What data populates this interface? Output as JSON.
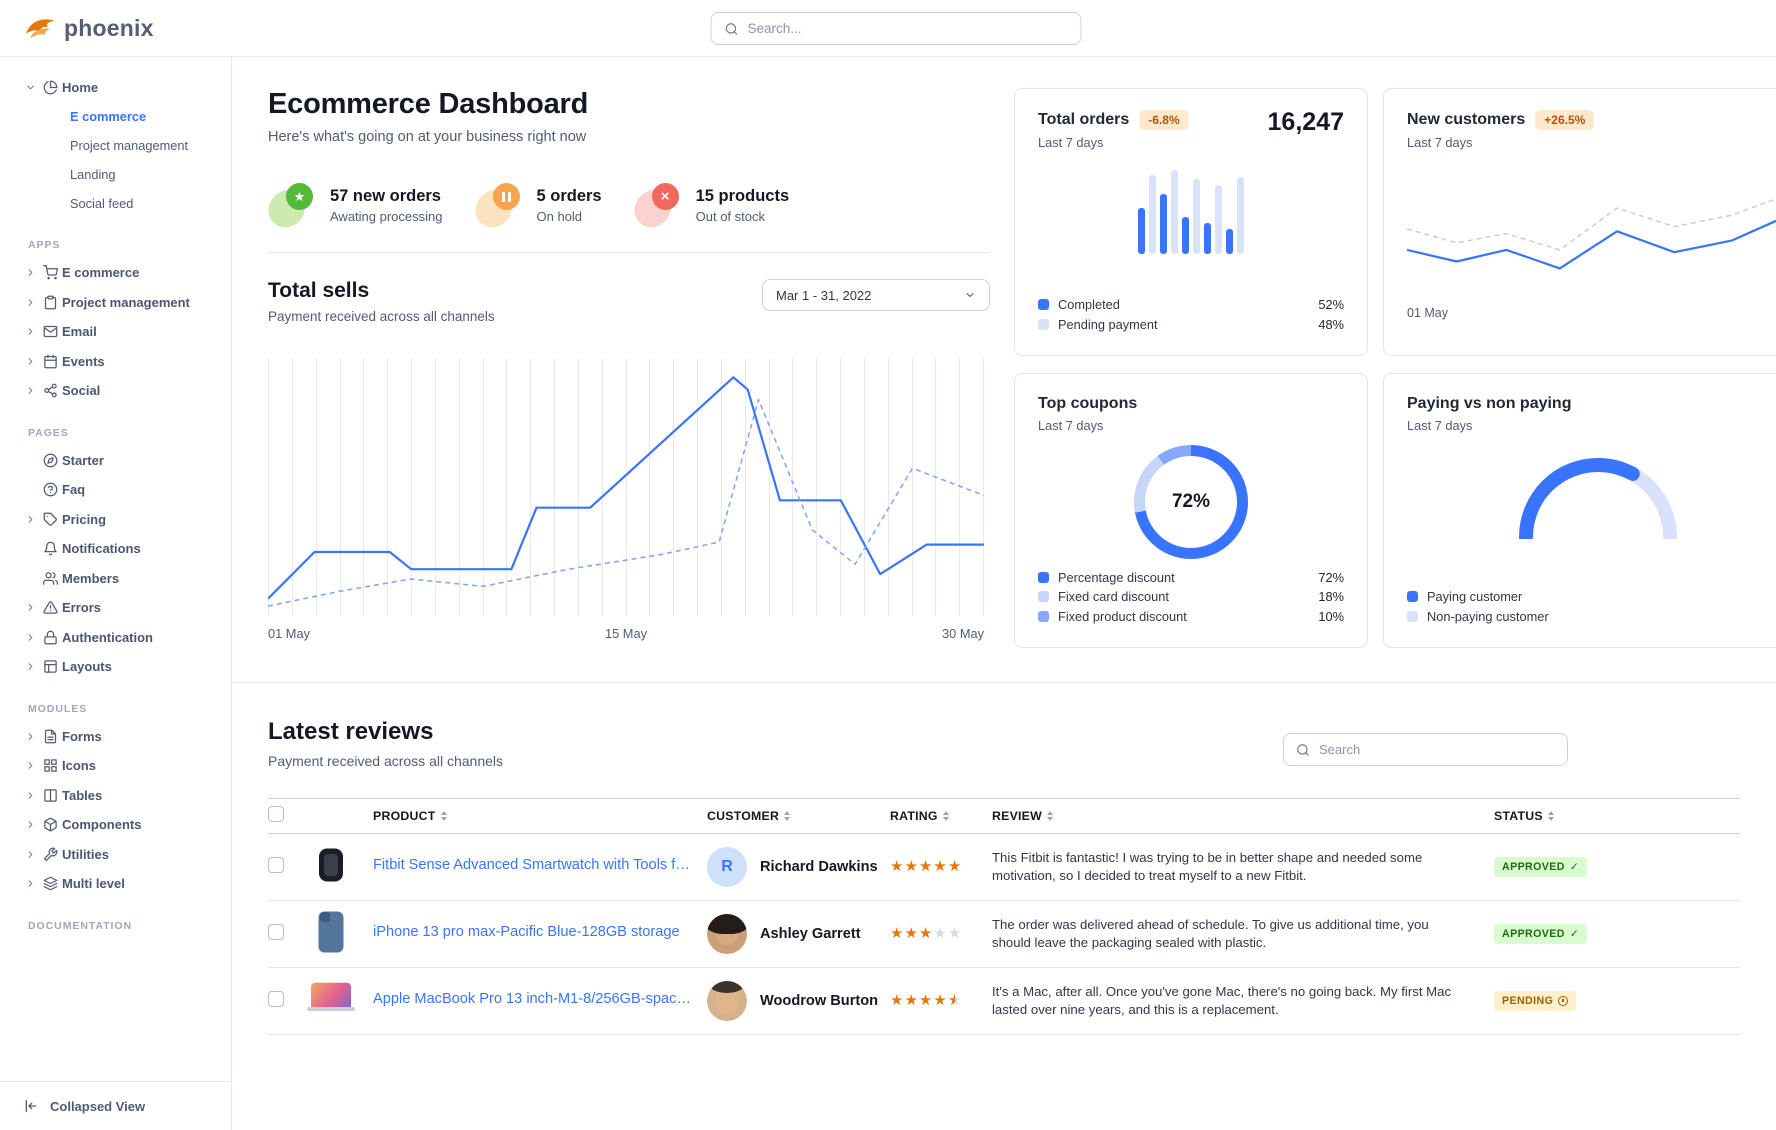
{
  "brand": {
    "name": "phoenix"
  },
  "theme": {
    "primary": "#3874ff",
    "star": "#e5780b",
    "success_badge_bg": "#d9fbd0",
    "success_badge_text": "#1c6c09",
    "warning_badge_bg": "#ffe8cc",
    "warning_badge_text": "#b4540a"
  },
  "topbar": {
    "search_placeholder": "Search..."
  },
  "sidebar": {
    "home": {
      "label": "Home"
    },
    "home_children": [
      {
        "label": "E commerce",
        "active": true
      },
      {
        "label": "Project management"
      },
      {
        "label": "Landing"
      },
      {
        "label": "Social feed"
      }
    ],
    "sections": [
      {
        "label": "APPS",
        "items": [
          {
            "label": "E commerce"
          },
          {
            "label": "Project management"
          },
          {
            "label": "Email"
          },
          {
            "label": "Events"
          },
          {
            "label": "Social"
          }
        ]
      },
      {
        "label": "PAGES",
        "items": [
          {
            "label": "Starter"
          },
          {
            "label": "Faq"
          },
          {
            "label": "Pricing"
          },
          {
            "label": "Notifications"
          },
          {
            "label": "Members"
          },
          {
            "label": "Errors"
          },
          {
            "label": "Authentication"
          },
          {
            "label": "Layouts"
          }
        ]
      },
      {
        "label": "MODULES",
        "items": [
          {
            "label": "Forms"
          },
          {
            "label": "Icons"
          },
          {
            "label": "Tables"
          },
          {
            "label": "Components"
          },
          {
            "label": "Utilities"
          },
          {
            "label": "Multi level"
          }
        ]
      },
      {
        "label": "DOCUMENTATION",
        "items": []
      }
    ],
    "collapse_label": "Collapsed View"
  },
  "dashboard": {
    "title": "Ecommerce Dashboard",
    "subtitle": "Here's what's going on at your business right now",
    "stats": [
      {
        "value": "57 new orders",
        "caption": "Awating processing"
      },
      {
        "value": "5 orders",
        "caption": "On hold"
      },
      {
        "value": "15 products",
        "caption": "Out of stock"
      }
    ],
    "total_sells": {
      "title": "Total sells",
      "subtitle": "Payment received across all channels",
      "date_range": "Mar 1 - 31, 2022"
    }
  },
  "cards": {
    "total_orders": {
      "title": "Total orders",
      "badge": "-6.8%",
      "period": "Last 7 days",
      "value": "16,247",
      "legend": [
        {
          "label": "Completed",
          "value": "52%"
        },
        {
          "label": "Pending payment",
          "value": "48%"
        }
      ]
    },
    "new_customers": {
      "title": "New customers",
      "badge": "+26.5%",
      "period": "Last 7 days",
      "x_label": "01 May"
    },
    "top_coupons": {
      "title": "Top coupons",
      "period": "Last 7 days",
      "center_label": "72%",
      "legend": [
        {
          "label": "Percentage discount",
          "value": "72%"
        },
        {
          "label": "Fixed card discount",
          "value": "18%"
        },
        {
          "label": "Fixed product discount",
          "value": "10%"
        }
      ]
    },
    "paying": {
      "title": "Paying vs non paying",
      "period": "Last 7 days",
      "legend": [
        {
          "label": "Paying customer"
        },
        {
          "label": "Non-paying customer"
        }
      ]
    }
  },
  "reviews": {
    "title": "Latest reviews",
    "subtitle": "Payment received across all channels",
    "search_placeholder": "Search",
    "columns": [
      "PRODUCT",
      "CUSTOMER",
      "RATING",
      "REVIEW",
      "STATUS"
    ],
    "rows": [
      {
        "product": "Fitbit Sense Advanced Smartwatch with Tools fo...",
        "customer": "Richard Dawkins",
        "avatar_initial": "R",
        "rating": 5,
        "review": "This Fitbit is fantastic! I was trying to be in better shape and needed some motivation, so I decided to treat myself to a new Fitbit.",
        "status": "APPROVED",
        "status_type": "success"
      },
      {
        "product": "iPhone 13 pro max-Pacific Blue-128GB storage",
        "customer": "Ashley Garrett",
        "rating": 3,
        "review": "The order was delivered ahead of schedule. To give us additional time, you should leave the packaging sealed with plastic.",
        "status": "APPROVED",
        "status_type": "success"
      },
      {
        "product": "Apple MacBook Pro 13 inch-M1-8/256GB-space gray",
        "customer": "Woodrow Burton",
        "rating": 4.5,
        "review": "It's a Mac, after all. Once you've gone Mac, there's no going back. My first Mac lasted over nine years, and this is a replacement.",
        "status": "PENDING",
        "status_type": "warning"
      }
    ]
  },
  "chart_data": {
    "total_sells": {
      "type": "line",
      "gridlines": 31,
      "grid": "vertical",
      "legend_position": "none",
      "x_labels": [
        "01 May",
        "15 May",
        "30 May"
      ],
      "series": [
        {
          "name": "current period",
          "color": "#3874ff",
          "width": 2.2,
          "points": [
            [
              0,
              5
            ],
            [
              0.065,
              24
            ],
            [
              0.17,
              24
            ],
            [
              0.2,
              17
            ],
            [
              0.34,
              17
            ],
            [
              0.375,
              42
            ],
            [
              0.45,
              42
            ],
            [
              0.65,
              95
            ],
            [
              0.67,
              90
            ],
            [
              0.715,
              45
            ],
            [
              0.8,
              45
            ],
            [
              0.855,
              15
            ],
            [
              0.92,
              27
            ],
            [
              1,
              27
            ]
          ]
        },
        {
          "name": "previous period",
          "color": "#7da4f8",
          "width": 1.5,
          "dashed": true,
          "points": [
            [
              0,
              2
            ],
            [
              0.1,
              8
            ],
            [
              0.2,
              13
            ],
            [
              0.3,
              10
            ],
            [
              0.42,
              17
            ],
            [
              0.55,
              23
            ],
            [
              0.63,
              28
            ],
            [
              0.685,
              86
            ],
            [
              0.76,
              33
            ],
            [
              0.82,
              19
            ],
            [
              0.9,
              58
            ],
            [
              1,
              47
            ]
          ]
        }
      ]
    },
    "total_orders": {
      "type": "bar",
      "values": [
        52,
        90,
        68,
        95,
        42,
        85,
        35,
        78,
        28,
        88
      ],
      "colors": [
        "#3874ff",
        "#d9e2f8"
      ]
    },
    "new_customers": {
      "type": "line",
      "series": [
        {
          "name": "previous",
          "color": "#c8cdd8",
          "width": 1.5,
          "dashed": true,
          "points": [
            [
              0,
              50
            ],
            [
              0.13,
              38
            ],
            [
              0.26,
              46
            ],
            [
              0.4,
              32
            ],
            [
              0.55,
              68
            ],
            [
              0.7,
              52
            ],
            [
              0.85,
              62
            ],
            [
              1,
              80
            ]
          ]
        },
        {
          "name": "current",
          "color": "#3874ff",
          "width": 2.2,
          "points": [
            [
              0,
              32
            ],
            [
              0.13,
              22
            ],
            [
              0.26,
              32
            ],
            [
              0.4,
              16
            ],
            [
              0.55,
              48
            ],
            [
              0.7,
              30
            ],
            [
              0.85,
              40
            ],
            [
              1,
              62
            ]
          ]
        }
      ]
    },
    "top_coupons": {
      "type": "donut",
      "values": [
        72,
        18,
        10
      ],
      "colors": [
        "#3874ff",
        "#c7d5f8",
        "#85a9ff"
      ],
      "center": "72%"
    },
    "paying": {
      "type": "gauge",
      "value": 66,
      "colors": [
        "#3874ff",
        "#d9e2f8"
      ]
    }
  }
}
